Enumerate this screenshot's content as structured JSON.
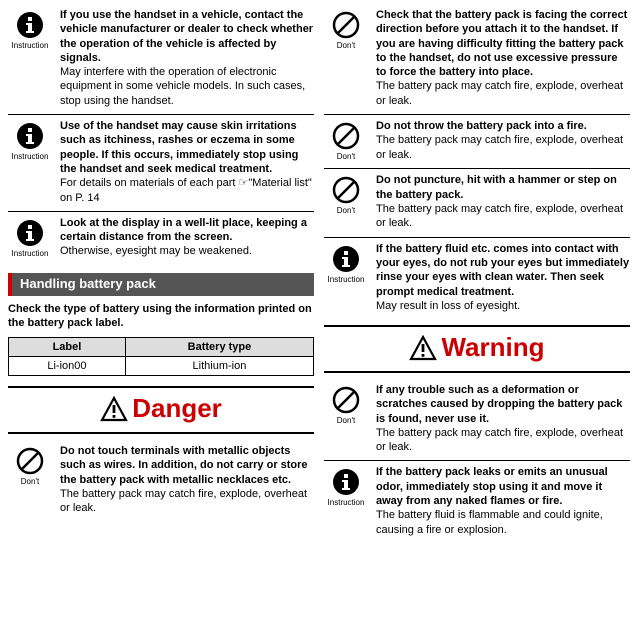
{
  "icons": {
    "instruction_label": "Instruction",
    "dont_label": "Don't"
  },
  "left": {
    "items": [
      {
        "type": "instruction",
        "bold": "If you use the handset in a vehicle, contact the vehicle manufacturer or dealer to check whether the operation of the vehicle is affected by signals.",
        "sub": "May interfere with the operation of electronic equipment in some vehicle models. In such cases, stop using the handset."
      },
      {
        "type": "instruction",
        "bold": "Use of the handset may cause skin irritations such as itchiness, rashes or eczema in some people. If this occurs, immediately stop using the handset and seek medical treatment.",
        "sub": "For details on materials of each part ☞\"Material list\" on P. 14"
      },
      {
        "type": "instruction",
        "bold": "Look at the display in a well-lit place, keeping a certain distance from the screen.",
        "sub": "Otherwise, eyesight may be weakened."
      }
    ],
    "section": "Handling battery pack",
    "lead": "Check the type of battery using the information printed on the battery pack label.",
    "table": {
      "h1": "Label",
      "h2": "Battery type",
      "c1": "Li-ion00",
      "c2": "Lithium-ion"
    },
    "banner1": "Danger",
    "danger_items": [
      {
        "type": "dont",
        "bold": "Do not touch terminals with metallic objects such as wires. In addition, do not carry or store the battery pack with metallic necklaces etc.",
        "sub": "The battery pack may catch fire, explode, overheat or leak."
      }
    ]
  },
  "right": {
    "items": [
      {
        "type": "dont",
        "bold": "Check that the battery pack is facing the correct direction before you attach it to the handset. If you are having difficulty fitting the battery pack to the handset, do not use excessive pressure to force the battery into place.",
        "sub": "The battery pack may catch fire, explode, overheat or leak."
      },
      {
        "type": "dont",
        "bold": "Do not throw the battery pack into a fire.",
        "sub": "The battery pack may catch fire, explode, overheat or leak."
      },
      {
        "type": "dont",
        "bold": "Do not puncture, hit with a hammer or step on the battery pack.",
        "sub": "The battery pack may catch fire, explode, overheat or leak."
      },
      {
        "type": "instruction",
        "bold": "If the battery fluid etc. comes into contact with your eyes, do not rub your eyes but immediately rinse your eyes with clean water. Then seek prompt medical treatment.",
        "sub": "May result in loss of eyesight."
      }
    ],
    "banner2": "Warning",
    "warning_items": [
      {
        "type": "dont",
        "bold": "If any trouble such as a deformation or scratches caused by dropping the battery pack is found, never use it.",
        "sub": "The battery pack may catch fire, explode, overheat or leak."
      },
      {
        "type": "instruction",
        "bold": "If the battery pack leaks or emits an unusual odor, immediately stop using it and move it away from any naked flames or fire.",
        "sub": "The battery fluid is flammable and could ignite, causing a fire or explosion."
      }
    ]
  }
}
